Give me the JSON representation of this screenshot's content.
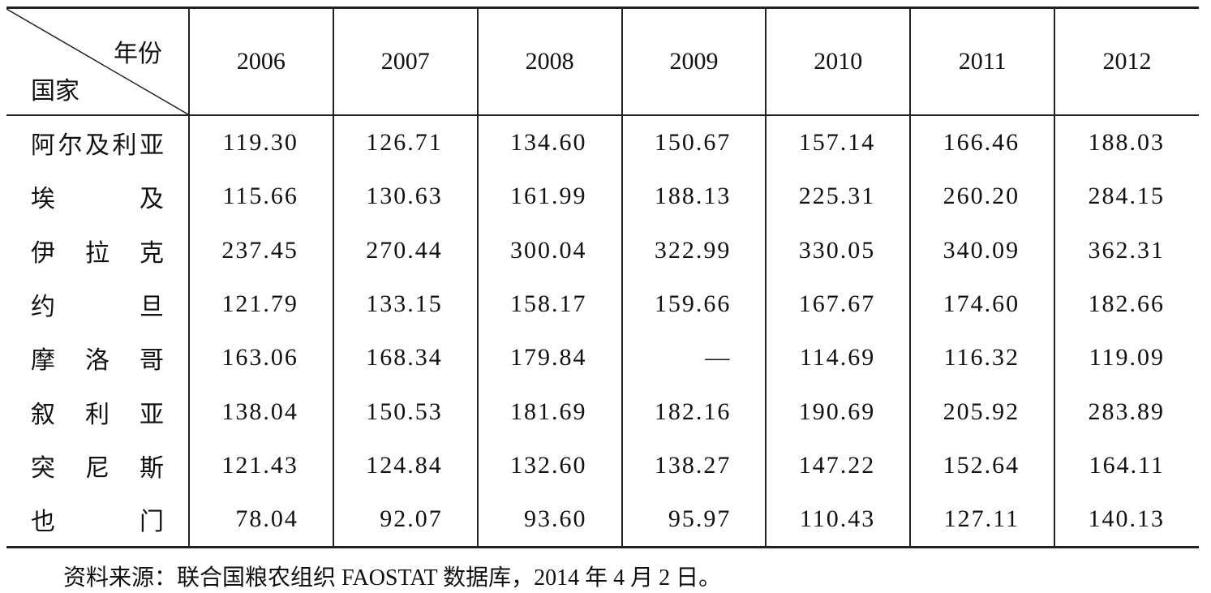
{
  "table": {
    "corner": {
      "column_header": "年份",
      "row_header": "国家"
    },
    "years": [
      "2006",
      "2007",
      "2008",
      "2009",
      "2010",
      "2011",
      "2012"
    ],
    "rows": [
      {
        "country": "阿尔及利亚",
        "values": [
          "119.30",
          "126.71",
          "134.60",
          "150.67",
          "157.14",
          "166.46",
          "188.03"
        ]
      },
      {
        "country": "埃及",
        "values": [
          "115.66",
          "130.63",
          "161.99",
          "188.13",
          "225.31",
          "260.20",
          "284.15"
        ]
      },
      {
        "country": "伊拉克",
        "values": [
          "237.45",
          "270.44",
          "300.04",
          "322.99",
          "330.05",
          "340.09",
          "362.31"
        ]
      },
      {
        "country": "约旦",
        "values": [
          "121.79",
          "133.15",
          "158.17",
          "159.66",
          "167.67",
          "174.60",
          "182.66"
        ]
      },
      {
        "country": "摩洛哥",
        "values": [
          "163.06",
          "168.34",
          "179.84",
          "—",
          "114.69",
          "116.32",
          "119.09"
        ]
      },
      {
        "country": "叙利亚",
        "values": [
          "138.04",
          "150.53",
          "181.69",
          "182.16",
          "190.69",
          "205.92",
          "283.89"
        ]
      },
      {
        "country": "突尼斯",
        "values": [
          "121.43",
          "124.84",
          "132.60",
          "138.27",
          "147.22",
          "152.64",
          "164.11"
        ]
      },
      {
        "country": "也门",
        "values": [
          "78.04",
          "92.07",
          "93.60",
          "95.97",
          "110.43",
          "127.11",
          "140.13"
        ]
      }
    ]
  },
  "source": "资料来源：联合国粮农组织 FAOSTAT 数据库，2014 年 4 月 2 日。"
}
